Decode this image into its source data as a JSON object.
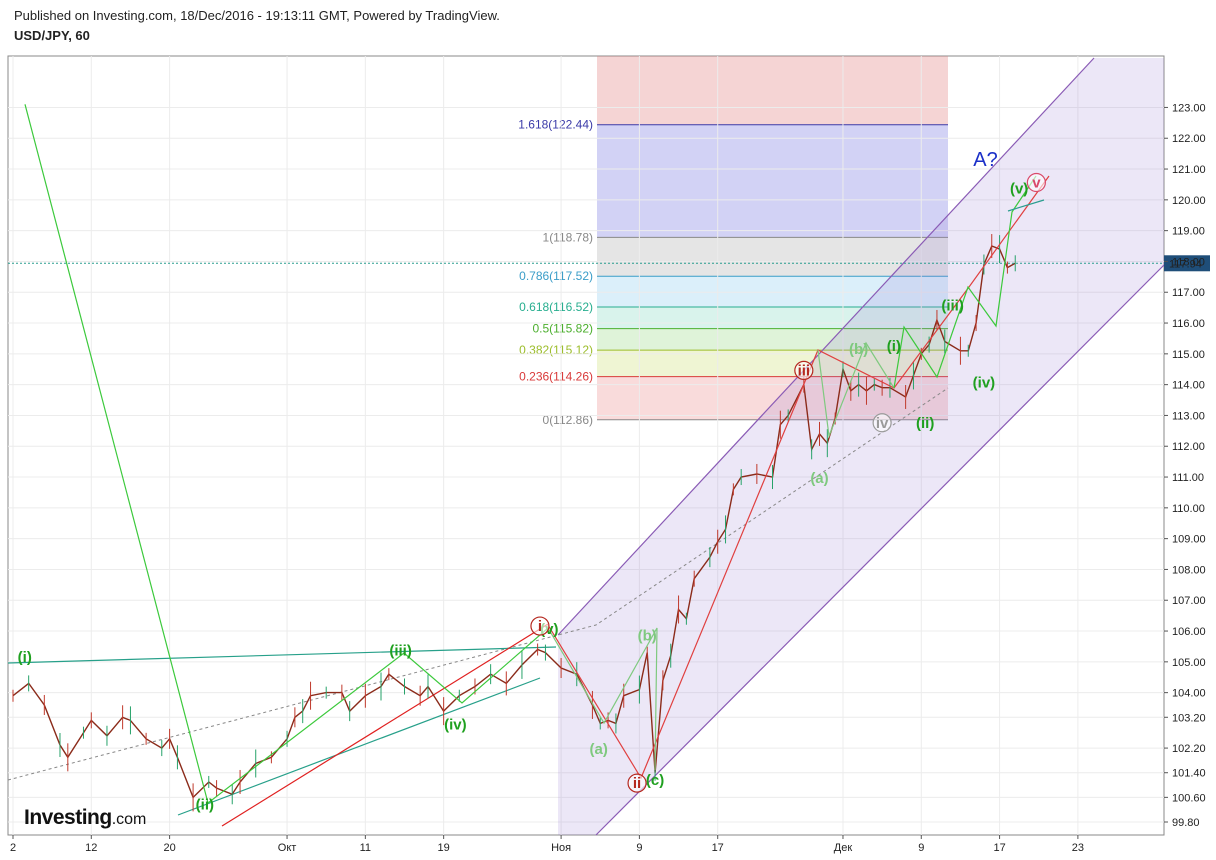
{
  "header": {
    "published": "Published on Investing.com, 18/Dec/2016 - 19:13:11 GMT, Powered by TradingView.",
    "symbol": "USD/JPY, 60"
  },
  "logo": {
    "brand": "Investing",
    "domain": ".com"
  },
  "chart_data": {
    "type": "line",
    "series_name": "USD/JPY",
    "ylim": [
      99.4,
      123.5
    ],
    "y_ticks": [
      {
        "v": 123.0,
        "label": "123.00"
      },
      {
        "v": 122.0,
        "label": "122.00"
      },
      {
        "v": 121.0,
        "label": "121.00"
      },
      {
        "v": 120.0,
        "label": "120.00"
      },
      {
        "v": 119.0,
        "label": "119.00"
      },
      {
        "v": 118.0,
        "label": "118.00"
      },
      {
        "v": 117.0,
        "label": "117.00"
      },
      {
        "v": 116.0,
        "label": "116.00"
      },
      {
        "v": 115.0,
        "label": "115.00"
      },
      {
        "v": 114.0,
        "label": "114.00"
      },
      {
        "v": 113.0,
        "label": "113.00"
      },
      {
        "v": 112.0,
        "label": "112.00"
      },
      {
        "v": 111.0,
        "label": "111.00"
      },
      {
        "v": 110.0,
        "label": "110.00"
      },
      {
        "v": 109.0,
        "label": "109.00"
      },
      {
        "v": 108.0,
        "label": "108.00"
      },
      {
        "v": 107.0,
        "label": "107.00"
      },
      {
        "v": 106.0,
        "label": "106.00"
      },
      {
        "v": 105.0,
        "label": "105.00"
      },
      {
        "v": 104.0,
        "label": "104.00"
      },
      {
        "v": 103.2,
        "label": "103.20"
      },
      {
        "v": 102.2,
        "label": "102.20"
      },
      {
        "v": 101.4,
        "label": "101.40"
      },
      {
        "v": 100.6,
        "label": "100.60"
      },
      {
        "v": 99.8,
        "label": "99.80"
      }
    ],
    "x_ticks": [
      {
        "x": 0,
        "label": "2"
      },
      {
        "x": 10,
        "label": "12"
      },
      {
        "x": 20,
        "label": "20"
      },
      {
        "x": 35,
        "label": "Окт"
      },
      {
        "x": 45,
        "label": "11"
      },
      {
        "x": 55,
        "label": "19"
      },
      {
        "x": 70,
        "label": "Ноя"
      },
      {
        "x": 80,
        "label": "9"
      },
      {
        "x": 90,
        "label": "17"
      },
      {
        "x": 106,
        "label": "Дек"
      },
      {
        "x": 116,
        "label": "9"
      },
      {
        "x": 126,
        "label": "17"
      },
      {
        "x": 136,
        "label": "23"
      }
    ],
    "last_price": {
      "value": 117.94,
      "label": "117.94"
    },
    "price_path": [
      [
        0,
        103.9
      ],
      [
        2,
        104.3
      ],
      [
        4,
        103.6
      ],
      [
        6,
        102.3
      ],
      [
        7,
        101.9
      ],
      [
        9,
        102.7
      ],
      [
        10,
        103.1
      ],
      [
        12,
        102.6
      ],
      [
        14,
        103.2
      ],
      [
        15,
        103.1
      ],
      [
        17,
        102.5
      ],
      [
        19,
        102.2
      ],
      [
        20,
        102.5
      ],
      [
        21,
        101.9
      ],
      [
        23,
        100.6
      ],
      [
        25,
        101.1
      ],
      [
        26,
        100.9
      ],
      [
        28,
        100.7
      ],
      [
        29,
        101.1
      ],
      [
        31,
        101.7
      ],
      [
        33,
        101.9
      ],
      [
        35,
        102.5
      ],
      [
        36,
        103.2
      ],
      [
        37,
        103.4
      ],
      [
        38,
        103.9
      ],
      [
        40,
        104.0
      ],
      [
        42,
        104.0
      ],
      [
        43,
        103.4
      ],
      [
        45,
        103.9
      ],
      [
        47,
        104.2
      ],
      [
        48,
        104.6
      ],
      [
        50,
        104.2
      ],
      [
        52,
        103.9
      ],
      [
        53,
        104.2
      ],
      [
        55,
        103.4
      ],
      [
        57,
        103.9
      ],
      [
        59,
        104.2
      ],
      [
        61,
        104.6
      ],
      [
        63,
        104.3
      ],
      [
        65,
        104.9
      ],
      [
        67,
        105.4
      ],
      [
        68,
        105.3
      ],
      [
        70,
        104.8
      ],
      [
        72,
        104.6
      ],
      [
        74,
        103.6
      ],
      [
        75,
        103.0
      ],
      [
        76,
        103.1
      ],
      [
        77,
        103.0
      ],
      [
        78,
        103.9
      ],
      [
        80,
        104.1
      ],
      [
        81,
        105.3
      ],
      [
        82,
        101.4
      ],
      [
        83,
        104.4
      ],
      [
        84,
        105.2
      ],
      [
        85,
        106.7
      ],
      [
        86,
        106.4
      ],
      [
        87,
        107.7
      ],
      [
        89,
        108.4
      ],
      [
        90,
        108.9
      ],
      [
        91,
        109.3
      ],
      [
        92,
        110.6
      ],
      [
        93,
        111.0
      ],
      [
        95,
        111.1
      ],
      [
        97,
        111.0
      ],
      [
        98,
        112.7
      ],
      [
        99,
        113.0
      ],
      [
        101,
        114.0
      ],
      [
        102,
        111.9
      ],
      [
        103,
        112.4
      ],
      [
        104,
        112.1
      ],
      [
        105,
        112.9
      ],
      [
        106,
        114.5
      ],
      [
        107,
        113.8
      ],
      [
        108,
        114.0
      ],
      [
        109,
        113.8
      ],
      [
        110,
        114.0
      ],
      [
        111,
        113.9
      ],
      [
        112,
        113.9
      ],
      [
        114,
        113.6
      ],
      [
        115,
        114.3
      ],
      [
        116,
        115.0
      ],
      [
        117,
        115.3
      ],
      [
        118,
        116.1
      ],
      [
        119,
        115.4
      ],
      [
        121,
        115.1
      ],
      [
        122,
        115.1
      ],
      [
        123,
        116.0
      ],
      [
        124,
        117.9
      ],
      [
        125,
        118.5
      ],
      [
        126,
        118.4
      ],
      [
        127,
        117.8
      ],
      [
        128,
        117.94
      ]
    ],
    "fib_levels": [
      {
        "ratio": 1.618,
        "value": 122.44,
        "label": "1.618(122.44)",
        "color": "#3a3aa8"
      },
      {
        "ratio": 1.0,
        "value": 118.78,
        "label": "1(118.78)",
        "color": "#888888"
      },
      {
        "ratio": 0.786,
        "value": 117.52,
        "label": "0.786(117.52)",
        "color": "#3a9dc8"
      },
      {
        "ratio": 0.618,
        "value": 116.52,
        "label": "0.618(116.52)",
        "color": "#27ae8f"
      },
      {
        "ratio": 0.5,
        "value": 115.82,
        "label": "0.5(115.82)",
        "color": "#4caf2e"
      },
      {
        "ratio": 0.382,
        "value": 115.12,
        "label": "0.382(115.12)",
        "color": "#9cbd2a"
      },
      {
        "ratio": 0.236,
        "value": 114.26,
        "label": "0.236(114.26)",
        "color": "#d93a3a"
      },
      {
        "ratio": 0,
        "value": 112.86,
        "label": "0(112.86)",
        "color": "#888888"
      }
    ],
    "annotations": [
      {
        "text": "(i)",
        "x": 1.5,
        "y": 105.0,
        "color": "#1fa01f",
        "style": "plain"
      },
      {
        "text": "(ii)",
        "x": 24.5,
        "y": 100.2,
        "color": "#1fa01f",
        "style": "plain"
      },
      {
        "text": "(iii)",
        "x": 49.5,
        "y": 105.2,
        "color": "#1fa01f",
        "style": "plain"
      },
      {
        "text": "(iv)",
        "x": 56.5,
        "y": 102.8,
        "color": "#1fa01f",
        "style": "plain"
      },
      {
        "text": "(v)",
        "x": 68.5,
        "y": 105.9,
        "color": "#1fa01f",
        "style": "plain"
      },
      {
        "text": "i",
        "x": 67.3,
        "y": 106.0,
        "color": "#b5281f",
        "style": "circle"
      },
      {
        "text": "(a)",
        "x": 74.8,
        "y": 102.0,
        "color": "#7fc97f",
        "style": "plain"
      },
      {
        "text": "(b)",
        "x": 81.0,
        "y": 105.7,
        "color": "#7fc97f",
        "style": "plain"
      },
      {
        "text": "(c)",
        "x": 82.0,
        "y": 101.0,
        "color": "#1fa01f",
        "style": "plain"
      },
      {
        "text": "ii",
        "x": 79.7,
        "y": 100.9,
        "color": "#b5281f",
        "style": "circle"
      },
      {
        "text": "iii",
        "x": 101.0,
        "y": 114.3,
        "color": "#b5281f",
        "style": "circle"
      },
      {
        "text": "(a)",
        "x": 103.0,
        "y": 110.8,
        "color": "#7fc97f",
        "style": "plain"
      },
      {
        "text": "(b)",
        "x": 108.0,
        "y": 115.0,
        "color": "#7fc97f",
        "style": "plain"
      },
      {
        "text": "iv",
        "x": 111.0,
        "y": 112.6,
        "color": "#9a9a9a",
        "style": "circle"
      },
      {
        "text": "(i)",
        "x": 112.5,
        "y": 115.1,
        "color": "#1fa01f",
        "style": "plain"
      },
      {
        "text": "(ii)",
        "x": 116.5,
        "y": 112.6,
        "color": "#1fa01f",
        "style": "plain"
      },
      {
        "text": "(iii)",
        "x": 120.0,
        "y": 116.4,
        "color": "#1fa01f",
        "style": "plain"
      },
      {
        "text": "(iv)",
        "x": 124.0,
        "y": 113.9,
        "color": "#1fa01f",
        "style": "plain"
      },
      {
        "text": "(v)",
        "x": 128.5,
        "y": 120.2,
        "color": "#1fa01f",
        "style": "plain"
      },
      {
        "text": "v",
        "x": 130.7,
        "y": 120.4,
        "color": "#d94a6a",
        "style": "circle"
      },
      {
        "text": "A?",
        "x": 124.2,
        "y": 121.1,
        "color": "#1a2fc8",
        "style": "big"
      }
    ]
  }
}
